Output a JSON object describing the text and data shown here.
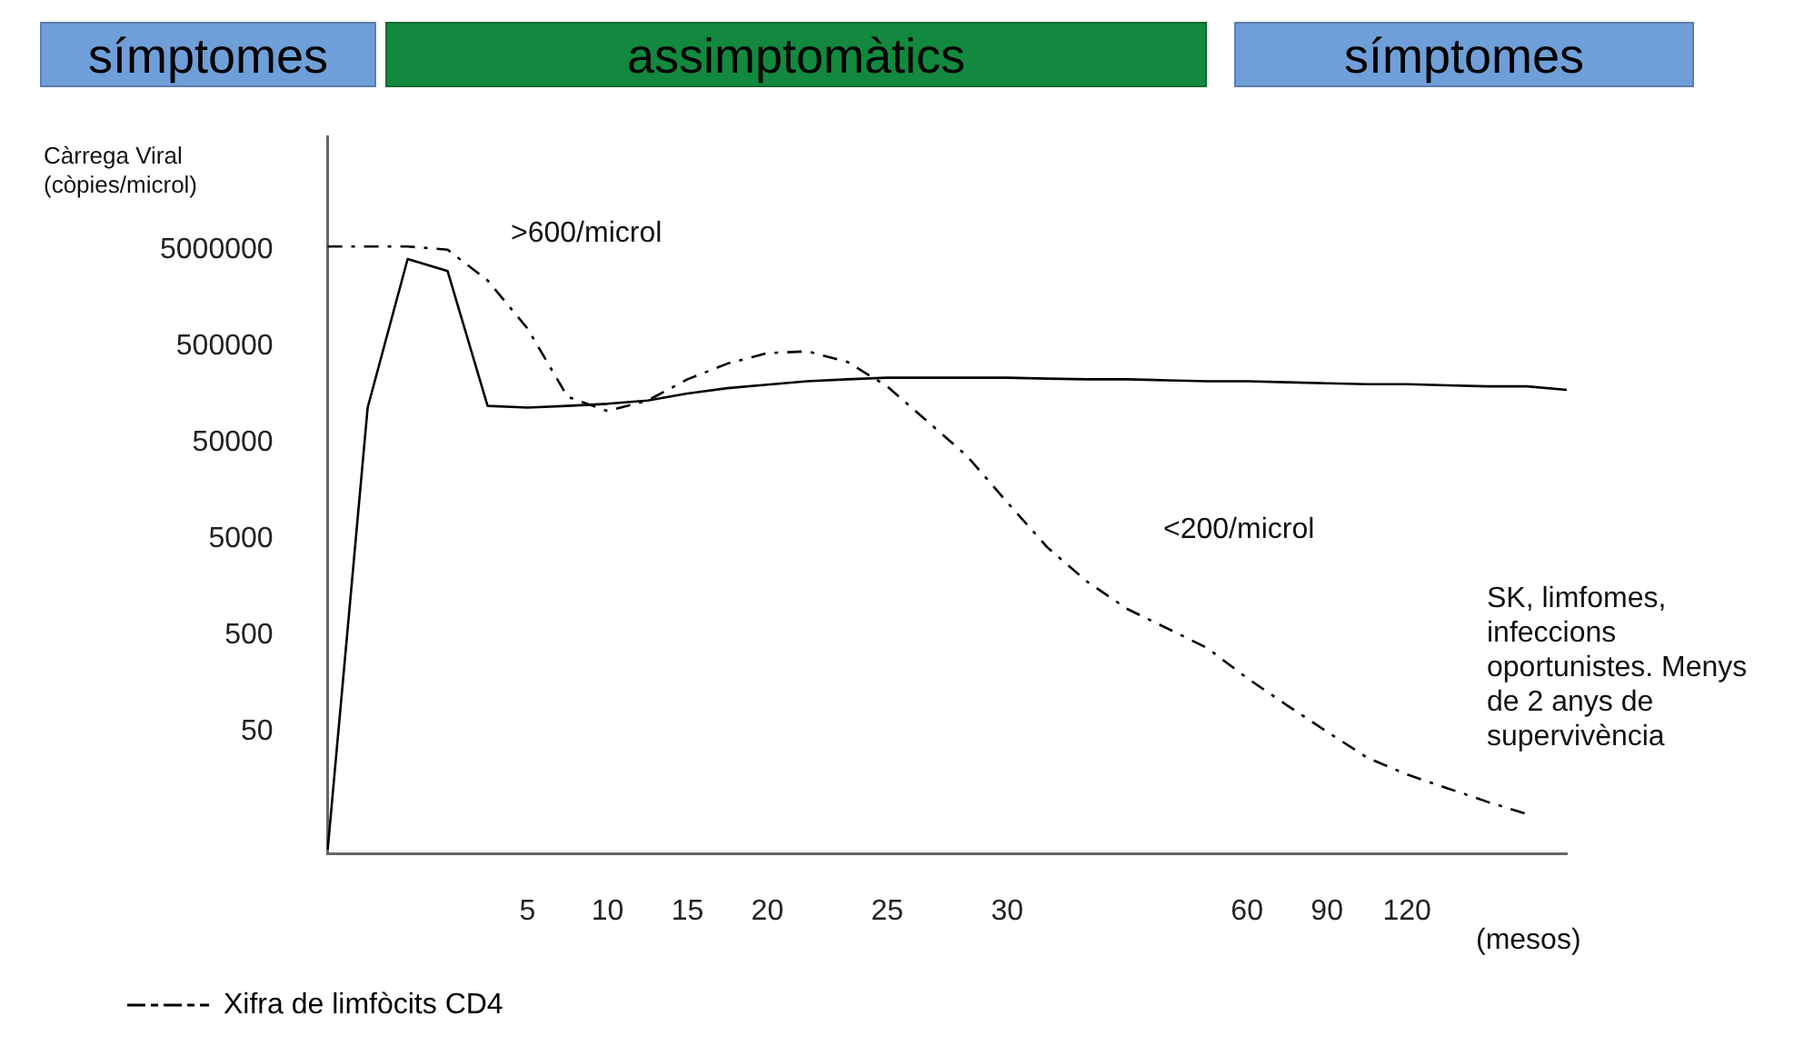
{
  "chart_data": {
    "type": "line",
    "ylabel": "Càrrega Viral (còpies/microl)",
    "xlabel": "(mesos)",
    "categories": [
      null,
      null,
      null,
      null,
      null,
      "5",
      null,
      "10",
      null,
      "15",
      null,
      "20",
      null,
      null,
      "25",
      null,
      null,
      "30",
      null,
      null,
      null,
      null,
      null,
      "60",
      null,
      "90",
      null,
      "120",
      null,
      null,
      null,
      null
    ],
    "series": [
      {
        "color": "#000000",
        "line_style": "solid",
        "values": [
          3,
          115000,
          4000000,
          3000000,
          120000,
          115000,
          120000,
          126000,
          136000,
          161000,
          183000,
          199000,
          216000,
          226000,
          235000,
          235000,
          235000,
          235000,
          230000,
          226000,
          226000,
          221000,
          216000,
          216000,
          211000,
          206000,
          201000,
          201000,
          196000,
          191000,
          191000,
          176000
        ]
      },
      {
        "name": "Xifra de limfòcits CD4",
        "color": "#000000",
        "line_style": "dashed",
        "values": [
          5400000,
          5400000,
          5400000,
          5000000,
          2400000,
          760000,
          149000,
          106000,
          136000,
          226000,
          329000,
          423000,
          441000,
          343000,
          191000,
          83000,
          36000,
          12000,
          4100,
          1800,
          940,
          590,
          370,
          180,
          94,
          50,
          27,
          18,
          13,
          9.4,
          7,
          null
        ]
      }
    ],
    "log": true,
    "ylim": [
      2.7,
      75000000
    ],
    "yticks": [
      50,
      500,
      5000,
      50000,
      500000,
      5000000
    ],
    "marker": "none",
    "grid": false,
    "legend": "bottom left",
    "annotations": [
      "símptomes",
      "assimptomàtics",
      "símptomes",
      ">600/microl",
      "<200/microl",
      "SK, limfomes, infeccions oportunistes. Menys de 2 anys de supervivència"
    ]
  }
}
